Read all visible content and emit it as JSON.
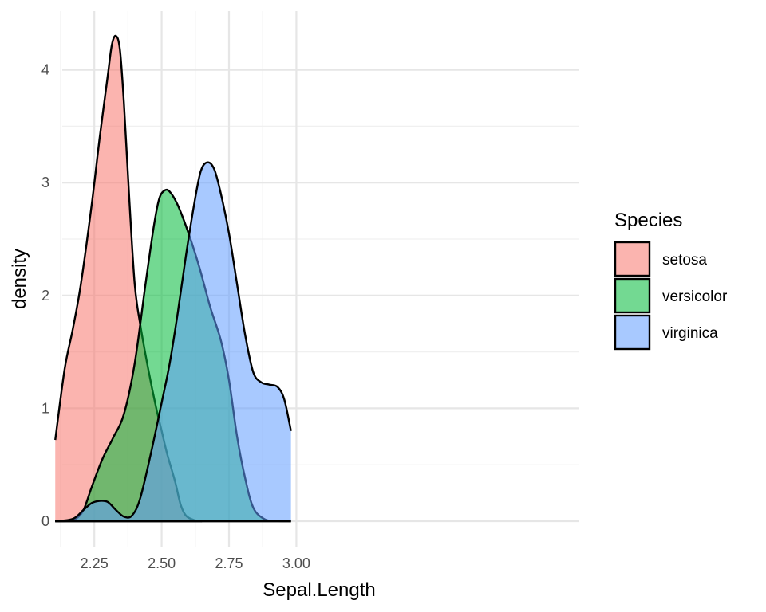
{
  "chart_data": {
    "type": "area",
    "subtype": "density",
    "xlabel": "Sepal.Length",
    "ylabel": "density",
    "xlim": [
      2.1,
      3.0
    ],
    "ylim": [
      0,
      4.5
    ],
    "x_ticks": [
      {
        "value": 2.25,
        "label": "2.25"
      },
      {
        "value": 2.5,
        "label": "2.50"
      },
      {
        "value": 2.75,
        "label": "2.75"
      },
      {
        "value": 3.0,
        "label": "3.00"
      }
    ],
    "y_ticks": [
      {
        "value": 0,
        "label": "0"
      },
      {
        "value": 1,
        "label": "1"
      },
      {
        "value": 2,
        "label": "2"
      },
      {
        "value": 3,
        "label": "3"
      },
      {
        "value": 4,
        "label": "4"
      }
    ],
    "grid": true,
    "legend": {
      "title": "Species",
      "position": "right"
    },
    "series": [
      {
        "name": "setosa",
        "color": "#F8766D",
        "points": [
          [
            2.105,
            0.72
          ],
          [
            2.14,
            1.35
          ],
          [
            2.17,
            1.7
          ],
          [
            2.2,
            2.1
          ],
          [
            2.24,
            2.8
          ],
          [
            2.27,
            3.4
          ],
          [
            2.3,
            3.95
          ],
          [
            2.315,
            4.22
          ],
          [
            2.33,
            4.3
          ],
          [
            2.345,
            4.18
          ],
          [
            2.36,
            3.7
          ],
          [
            2.38,
            2.85
          ],
          [
            2.4,
            2.1
          ],
          [
            2.42,
            1.75
          ],
          [
            2.45,
            1.35
          ],
          [
            2.48,
            1.0
          ],
          [
            2.5,
            0.8
          ],
          [
            2.52,
            0.6
          ],
          [
            2.55,
            0.35
          ],
          [
            2.57,
            0.15
          ],
          [
            2.59,
            0.05
          ],
          [
            2.62,
            0.01
          ],
          [
            2.65,
            0.0
          ]
        ]
      },
      {
        "name": "versicolor",
        "color": "#00BA38",
        "points": [
          [
            2.105,
            0.0
          ],
          [
            2.15,
            0.002
          ],
          [
            2.18,
            0.02
          ],
          [
            2.21,
            0.1
          ],
          [
            2.24,
            0.3
          ],
          [
            2.28,
            0.55
          ],
          [
            2.32,
            0.74
          ],
          [
            2.36,
            0.95
          ],
          [
            2.4,
            1.4
          ],
          [
            2.44,
            2.1
          ],
          [
            2.47,
            2.6
          ],
          [
            2.49,
            2.85
          ],
          [
            2.51,
            2.93
          ],
          [
            2.53,
            2.92
          ],
          [
            2.56,
            2.8
          ],
          [
            2.6,
            2.55
          ],
          [
            2.64,
            2.25
          ],
          [
            2.68,
            1.9
          ],
          [
            2.72,
            1.6
          ],
          [
            2.75,
            1.25
          ],
          [
            2.78,
            0.75
          ],
          [
            2.81,
            0.38
          ],
          [
            2.84,
            0.12
          ],
          [
            2.88,
            0.02
          ],
          [
            2.92,
            0.003
          ],
          [
            2.98,
            0.0
          ]
        ]
      },
      {
        "name": "virginica",
        "color": "#619CFF",
        "points": [
          [
            2.105,
            0.0
          ],
          [
            2.17,
            0.02
          ],
          [
            2.21,
            0.1
          ],
          [
            2.24,
            0.16
          ],
          [
            2.27,
            0.18
          ],
          [
            2.3,
            0.17
          ],
          [
            2.33,
            0.1
          ],
          [
            2.36,
            0.04
          ],
          [
            2.39,
            0.05
          ],
          [
            2.42,
            0.2
          ],
          [
            2.46,
            0.6
          ],
          [
            2.5,
            1.05
          ],
          [
            2.53,
            1.4
          ],
          [
            2.56,
            1.85
          ],
          [
            2.59,
            2.35
          ],
          [
            2.62,
            2.8
          ],
          [
            2.645,
            3.1
          ],
          [
            2.67,
            3.18
          ],
          [
            2.695,
            3.12
          ],
          [
            2.72,
            2.9
          ],
          [
            2.75,
            2.55
          ],
          [
            2.78,
            2.1
          ],
          [
            2.81,
            1.65
          ],
          [
            2.84,
            1.32
          ],
          [
            2.87,
            1.23
          ],
          [
            2.9,
            1.21
          ],
          [
            2.93,
            1.19
          ],
          [
            2.955,
            1.08
          ],
          [
            2.98,
            0.8
          ]
        ]
      }
    ]
  }
}
